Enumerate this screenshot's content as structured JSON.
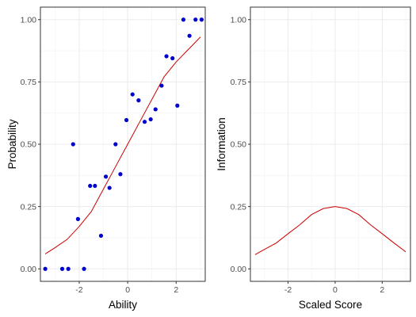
{
  "chart_data": [
    {
      "type": "scatter",
      "xlabel": "Ability",
      "ylabel": "Probability",
      "xlim": [
        -3.6,
        3.2
      ],
      "ylim": [
        -0.05,
        1.05
      ],
      "x_ticks": [
        -2,
        0,
        2
      ],
      "x_tick_labels": [
        "-2",
        "0",
        "2"
      ],
      "y_ticks": [
        0,
        0.25,
        0.5,
        0.75,
        1
      ],
      "y_tick_labels": [
        "0.00",
        "0.25",
        "0.50",
        "0.75",
        "1.00"
      ],
      "grid": true,
      "colors": {
        "points": "#0000cd",
        "curve": "#cc0000"
      },
      "points": {
        "x": [
          -3.4,
          -2.7,
          -2.45,
          -2.25,
          -2.05,
          -1.8,
          -1.55,
          -1.35,
          -1.1,
          -0.9,
          -0.75,
          -0.5,
          -0.3,
          -0.05,
          0.2,
          0.45,
          0.7,
          0.95,
          1.15,
          1.4,
          1.6,
          1.85,
          2.05,
          2.3,
          2.55,
          2.8,
          3.05
        ],
        "y": [
          0.0,
          0.0,
          0.0,
          0.5,
          0.2,
          0.0,
          0.333,
          0.333,
          0.133,
          0.37,
          0.325,
          0.5,
          0.38,
          0.597,
          0.7,
          0.676,
          0.59,
          0.6,
          0.64,
          0.735,
          0.853,
          0.845,
          0.655,
          1.0,
          0.935,
          1.0,
          1.0
        ]
      },
      "curve": {
        "x": [
          -3.4,
          -3.0,
          -2.5,
          -2.0,
          -1.5,
          -1.0,
          -0.5,
          0.0,
          0.5,
          1.0,
          1.5,
          2.0,
          2.5,
          3.0
        ],
        "y": [
          0.06,
          0.085,
          0.118,
          0.17,
          0.23,
          0.32,
          0.41,
          0.5,
          0.59,
          0.68,
          0.77,
          0.83,
          0.88,
          0.93
        ]
      }
    },
    {
      "type": "line",
      "xlabel": "Scaled Score",
      "ylabel": "Information",
      "xlim": [
        -3.6,
        3.2
      ],
      "ylim": [
        -0.05,
        1.05
      ],
      "x_ticks": [
        -2,
        0,
        2
      ],
      "x_tick_labels": [
        "-2",
        "0",
        "2"
      ],
      "y_ticks": [
        0,
        0.25,
        0.5,
        0.75,
        1
      ],
      "y_tick_labels": [
        "0.00",
        "0.25",
        "0.50",
        "0.75",
        "1.00"
      ],
      "grid": true,
      "colors": {
        "curve": "#cc0000"
      },
      "curve": {
        "x": [
          -3.4,
          -3.0,
          -2.5,
          -2.0,
          -1.5,
          -1.0,
          -0.5,
          0.0,
          0.5,
          1.0,
          1.5,
          2.0,
          2.5,
          3.0
        ],
        "y": [
          0.057,
          0.078,
          0.104,
          0.141,
          0.177,
          0.218,
          0.242,
          0.25,
          0.242,
          0.218,
          0.177,
          0.141,
          0.104,
          0.068
        ]
      }
    }
  ]
}
